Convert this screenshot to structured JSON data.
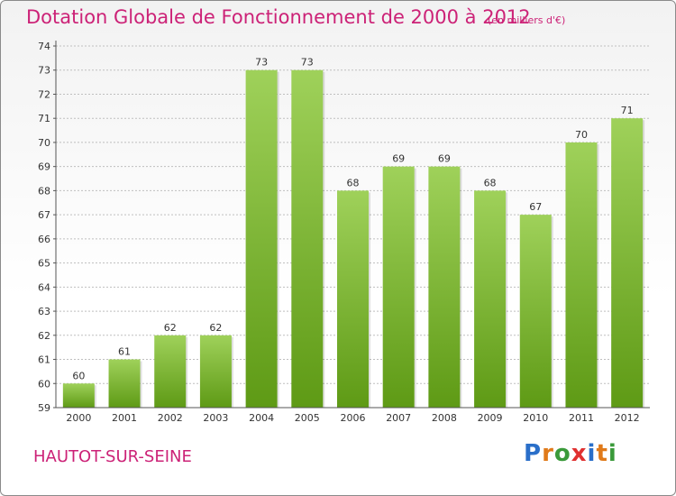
{
  "title": "Dotation Globale de Fonctionnement de 2000 à 2012",
  "subtitle": "(en milliers d'€)",
  "place": "HAUTOT-SUR-SEINE",
  "logo": {
    "letters": [
      "P",
      "r",
      "o",
      "x",
      "i",
      "t",
      "i"
    ],
    "colors": [
      "#2a6fc9",
      "#e07a1a",
      "#3a9a3a",
      "#e03030",
      "#2a6fc9",
      "#e07a1a",
      "#3a9a3a"
    ]
  },
  "colors": {
    "bar_top": "#9fd15a",
    "bar_bottom": "#5e9a15",
    "text": "#cc2277",
    "axis": "#555555",
    "grid": "#bfbfbf"
  },
  "chart_data": {
    "type": "bar",
    "categories": [
      "2000",
      "2001",
      "2002",
      "2003",
      "2004",
      "2005",
      "2006",
      "2007",
      "2008",
      "2009",
      "2010",
      "2011",
      "2012"
    ],
    "values": [
      60,
      61,
      62,
      62,
      73,
      73,
      68,
      69,
      69,
      68,
      67,
      70,
      71
    ],
    "ylim": [
      59,
      74
    ],
    "yticks": [
      59,
      60,
      61,
      62,
      63,
      64,
      65,
      66,
      67,
      68,
      69,
      70,
      71,
      72,
      73,
      74
    ],
    "grid": true,
    "data_labels": true
  }
}
